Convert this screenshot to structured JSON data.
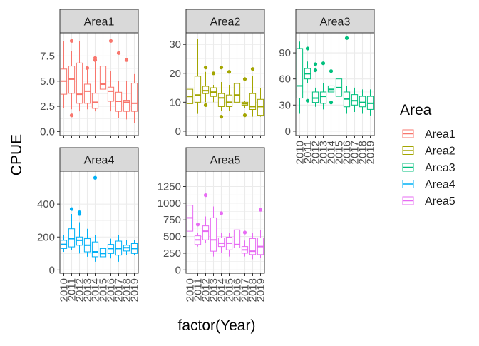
{
  "chart_data": {
    "type": "boxplot",
    "facet_by": "Area",
    "xlabel": "factor(Year)",
    "ylabel": "CPUE",
    "years": [
      "2010",
      "2011",
      "2012",
      "2013",
      "2014",
      "2015",
      "2016",
      "2017",
      "2018",
      "2019"
    ],
    "grid": true,
    "legend": {
      "title": "Area",
      "position": "right",
      "items": [
        {
          "name": "Area1",
          "color": "#F8766D"
        },
        {
          "name": "Area2",
          "color": "#A3A500"
        },
        {
          "name": "Area3",
          "color": "#00BF7D"
        },
        {
          "name": "Area4",
          "color": "#00B0F6"
        },
        {
          "name": "Area5",
          "color": "#E76BF3"
        }
      ]
    },
    "facets": [
      {
        "name": "Area1",
        "color": "#F8766D",
        "ylim": [
          -0.4,
          9.8
        ],
        "yticks": [
          0.0,
          2.5,
          5.0,
          7.5
        ],
        "ytick_labels": [
          "0.0",
          "2.5",
          "5.0",
          "7.5"
        ],
        "show_x_labels": false,
        "boxes": [
          {
            "year": "2010",
            "min": 2.3,
            "q1": 3.7,
            "med": 5.0,
            "q3": 6.2,
            "max": 9.0
          },
          {
            "year": "2011",
            "min": 2.2,
            "q1": 3.8,
            "med": 5.2,
            "q3": 6.5,
            "max": 8.0,
            "outliers": [
              1.6,
              9.0
            ]
          },
          {
            "year": "2012",
            "min": 2.0,
            "q1": 2.8,
            "med": 3.7,
            "q3": 6.8,
            "max": 9.0
          },
          {
            "year": "2013",
            "min": 2.2,
            "q1": 2.8,
            "med": 4.0,
            "q3": 4.7,
            "max": 6.3,
            "outliers": [
              6.3
            ]
          },
          {
            "year": "2014",
            "min": 2.0,
            "q1": 2.3,
            "med": 2.9,
            "q3": 3.8,
            "max": 7.2,
            "outliers": [
              7.1,
              7.3
            ]
          },
          {
            "year": "2015",
            "min": 2.8,
            "q1": 4.2,
            "med": 4.7,
            "q3": 6.5,
            "max": 7.5
          },
          {
            "year": "2016",
            "min": 2.0,
            "q1": 3.0,
            "med": 4.0,
            "q3": 4.4,
            "max": 6.0,
            "outliers": [
              9.0
            ]
          },
          {
            "year": "2017",
            "min": 1.3,
            "q1": 2.0,
            "med": 3.0,
            "q3": 3.9,
            "max": 5.0,
            "outliers": [
              7.8
            ]
          },
          {
            "year": "2018",
            "min": 1.2,
            "q1": 2.0,
            "med": 2.9,
            "q3": 3.1,
            "max": 5.0,
            "outliers": [
              7.1
            ]
          },
          {
            "year": "2019",
            "min": 0.8,
            "q1": 2.0,
            "med": 2.8,
            "q3": 4.8,
            "max": 5.7
          }
        ]
      },
      {
        "name": "Area2",
        "color": "#A3A500",
        "ylim": [
          -1.5,
          34
        ],
        "yticks": [
          0,
          10,
          20,
          30
        ],
        "ytick_labels": [
          "0",
          "10",
          "20",
          "30"
        ],
        "show_x_labels": false,
        "boxes": [
          {
            "year": "2010",
            "min": 5.0,
            "q1": 9.5,
            "med": 12.0,
            "q3": 14.5,
            "max": 22.0
          },
          {
            "year": "2011",
            "min": 6.0,
            "q1": 10.0,
            "med": 12.5,
            "q3": 19.0,
            "max": 32.0
          },
          {
            "year": "2012",
            "min": 10.0,
            "q1": 13.0,
            "med": 14.0,
            "q3": 15.5,
            "max": 20.5,
            "outliers": [
              22.0,
              9.0
            ]
          },
          {
            "year": "2013",
            "min": 10.0,
            "q1": 12.0,
            "med": 13.5,
            "q3": 15.0,
            "max": 16.0,
            "outliers": [
              20.0
            ]
          },
          {
            "year": "2014",
            "min": 7.0,
            "q1": 8.5,
            "med": 11.5,
            "q3": 13.0,
            "max": 17.0,
            "outliers": [
              22.0,
              5.0
            ]
          },
          {
            "year": "2015",
            "min": 7.0,
            "q1": 8.5,
            "med": 10.0,
            "q3": 12.5,
            "max": 16.0,
            "outliers": [
              20.5
            ]
          },
          {
            "year": "2016",
            "min": 9.0,
            "q1": 10.0,
            "med": 12.5,
            "q3": 16.5,
            "max": 21.0
          },
          {
            "year": "2017",
            "min": 8.0,
            "q1": 9.0,
            "med": 9.5,
            "q3": 10.0,
            "max": 10.5,
            "outliers": [
              18.0,
              5.5
            ]
          },
          {
            "year": "2018",
            "min": 5.0,
            "q1": 7.5,
            "med": 8.5,
            "q3": 13.0,
            "max": 19.0,
            "outliers": [
              21.5
            ]
          },
          {
            "year": "2019",
            "min": 5.0,
            "q1": 5.5,
            "med": 8.5,
            "q3": 11.0,
            "max": 15.0
          }
        ]
      },
      {
        "name": "Area3",
        "color": "#00BF7D",
        "ylim": [
          -5,
          113
        ],
        "yticks": [
          0,
          30,
          60,
          90
        ],
        "ytick_labels": [
          "0",
          "30",
          "60",
          "90"
        ],
        "show_x_labels": true,
        "boxes": [
          {
            "year": "2010",
            "min": 20.0,
            "q1": 38.0,
            "med": 52.0,
            "q3": 95.0,
            "max": 103.0
          },
          {
            "year": "2011",
            "min": 55.0,
            "q1": 60.0,
            "med": 66.0,
            "q3": 72.0,
            "max": 80.0,
            "outliers": [
              35.0,
              95.0
            ]
          },
          {
            "year": "2012",
            "min": 28.0,
            "q1": 33.0,
            "med": 38.0,
            "q3": 45.0,
            "max": 50.0,
            "outliers": [
              70.0,
              77.0
            ]
          },
          {
            "year": "2013",
            "min": 25.0,
            "q1": 32.0,
            "med": 40.0,
            "q3": 45.0,
            "max": 55.0,
            "outliers": [
              78.0
            ]
          },
          {
            "year": "2014",
            "min": 35.0,
            "q1": 45.0,
            "med": 48.0,
            "q3": 52.0,
            "max": 55.0,
            "outliers": [
              69.0,
              33.0
            ]
          },
          {
            "year": "2015",
            "min": 30.0,
            "q1": 40.0,
            "med": 50.0,
            "q3": 60.0,
            "max": 65.0
          },
          {
            "year": "2016",
            "min": 20.0,
            "q1": 28.0,
            "med": 37.0,
            "q3": 45.0,
            "max": 52.0,
            "outliers": [
              107.0
            ]
          },
          {
            "year": "2017",
            "min": 22.0,
            "q1": 30.0,
            "med": 35.0,
            "q3": 42.0,
            "max": 50.0
          },
          {
            "year": "2018",
            "min": 20.0,
            "q1": 28.0,
            "med": 33.0,
            "q3": 40.0,
            "max": 48.0
          },
          {
            "year": "2019",
            "min": 18.0,
            "q1": 25.0,
            "med": 32.0,
            "q3": 40.0,
            "max": 48.0
          }
        ]
      },
      {
        "name": "Area4",
        "color": "#00B0F6",
        "ylim": [
          -20,
          600
        ],
        "yticks": [
          0,
          200,
          400
        ],
        "ytick_labels": [
          "0",
          "200",
          "400"
        ],
        "show_x_labels": true,
        "boxes": [
          {
            "year": "2010",
            "min": 110.0,
            "q1": 130.0,
            "med": 155.0,
            "q3": 180.0,
            "max": 210.0
          },
          {
            "year": "2011",
            "min": 120.0,
            "q1": 140.0,
            "med": 190.0,
            "q3": 250.0,
            "max": 340.0,
            "outliers": [
              370.0
            ]
          },
          {
            "year": "2012",
            "min": 100.0,
            "q1": 150.0,
            "med": 180.0,
            "q3": 200.0,
            "max": 290.0,
            "outliers": [
              340.0,
              350.0
            ]
          },
          {
            "year": "2013",
            "min": 80.0,
            "q1": 110.0,
            "med": 150.0,
            "q3": 190.0,
            "max": 250.0
          },
          {
            "year": "2014",
            "min": 50.0,
            "q1": 80.0,
            "med": 110.0,
            "q3": 170.0,
            "max": 210.0,
            "outliers": [
              560.0
            ]
          },
          {
            "year": "2015",
            "min": 60.0,
            "q1": 80.0,
            "med": 100.0,
            "q3": 130.0,
            "max": 170.0
          },
          {
            "year": "2016",
            "min": 70.0,
            "q1": 100.0,
            "med": 130.0,
            "q3": 155.0,
            "max": 190.0
          },
          {
            "year": "2017",
            "min": 50.0,
            "q1": 90.0,
            "med": 130.0,
            "q3": 175.0,
            "max": 210.0
          },
          {
            "year": "2018",
            "min": 90.0,
            "q1": 115.0,
            "med": 135.0,
            "q3": 150.0,
            "max": 180.0
          },
          {
            "year": "2019",
            "min": 90.0,
            "q1": 100.0,
            "med": 130.0,
            "q3": 160.0,
            "max": 180.0
          }
        ]
      },
      {
        "name": "Area5",
        "color": "#E76BF3",
        "ylim": [
          -50,
          1480
        ],
        "yticks": [
          0,
          250,
          500,
          750,
          1000,
          1250
        ],
        "ytick_labels": [
          "0",
          "250",
          "500",
          "750",
          "1000",
          "1250"
        ],
        "show_x_labels": true,
        "boxes": [
          {
            "year": "2010",
            "min": 400.0,
            "q1": 580.0,
            "med": 780.0,
            "q3": 970.0,
            "max": 1240.0
          },
          {
            "year": "2011",
            "min": 350.0,
            "q1": 380.0,
            "med": 450.0,
            "q3": 510.0,
            "max": 560.0,
            "outliers": [
              680.0
            ]
          },
          {
            "year": "2012",
            "min": 400.0,
            "q1": 450.0,
            "med": 580.0,
            "q3": 660.0,
            "max": 800.0,
            "outliers": [
              1120.0
            ]
          },
          {
            "year": "2013",
            "min": 200.0,
            "q1": 280.0,
            "med": 450.0,
            "q3": 780.0,
            "max": 950.0
          },
          {
            "year": "2014",
            "min": 250.0,
            "q1": 350.0,
            "med": 400.0,
            "q3": 480.0,
            "max": 550.0,
            "outliers": [
              850.0
            ]
          },
          {
            "year": "2015",
            "min": 200.0,
            "q1": 300.0,
            "med": 400.0,
            "q3": 490.0,
            "max": 550.0
          },
          {
            "year": "2016",
            "min": 280.0,
            "q1": 330.0,
            "med": 380.0,
            "q3": 600.0,
            "max": 680.0
          },
          {
            "year": "2017",
            "min": 200.0,
            "q1": 250.0,
            "med": 300.0,
            "q3": 350.0,
            "max": 440.0,
            "outliers": [
              560.0
            ]
          },
          {
            "year": "2018",
            "min": 160.0,
            "q1": 230.0,
            "med": 280.0,
            "q3": 470.0,
            "max": 560.0
          },
          {
            "year": "2019",
            "min": 180.0,
            "q1": 230.0,
            "med": 350.0,
            "q3": 480.0,
            "max": 600.0,
            "outliers": [
              900.0
            ]
          }
        ]
      }
    ]
  }
}
